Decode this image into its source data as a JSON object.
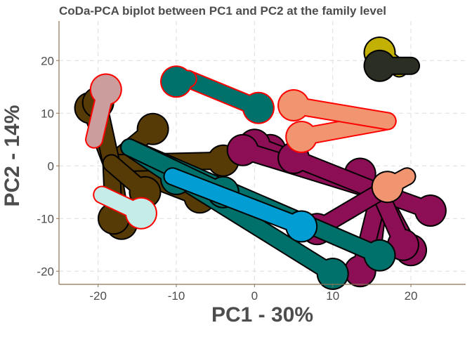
{
  "chart_data": {
    "type": "scatter",
    "title": "CoDa-PCA biplot between PC1 and PC2 at the family level",
    "xlabel": "PC1 - 30%",
    "ylabel": "PC2 - 14%",
    "xlim": [
      -25,
      27
    ],
    "ylim": [
      -22.5,
      27.5
    ],
    "x_ticks": [
      -20,
      -10,
      0,
      10,
      20
    ],
    "y_ticks": [
      -20,
      -10,
      0,
      10,
      20
    ],
    "x_tick_labels": [
      "-20",
      "-10",
      "0",
      "10",
      "20"
    ],
    "y_tick_labels": [
      "-20",
      "-10",
      "0",
      "10",
      "20"
    ],
    "grid": true,
    "series": [
      {
        "color": "#573b07",
        "outline": "#000000",
        "arrows": [
          {
            "from": [
              -18.3,
              0.5
            ],
            "to": [
              -21.0,
              11.0
            ]
          },
          {
            "from": [
              -18.3,
              0.5
            ],
            "to": [
              -13.0,
              7.0
            ]
          },
          {
            "from": [
              -18.3,
              0.5
            ],
            "to": [
              -17.0,
              -11.0
            ]
          },
          {
            "from": [
              -18.3,
              0.5
            ],
            "to": [
              -7.0,
              -6.0
            ]
          },
          {
            "from": [
              -18.3,
              0.5
            ],
            "to": [
              -4.0,
              1.0
            ]
          },
          {
            "from": [
              -18.3,
              0.5
            ],
            "to": [
              -20.0,
              12.0
            ]
          },
          {
            "from": [
              -18.3,
              0.5
            ],
            "to": [
              -18.0,
              -10.0
            ]
          },
          {
            "from": [
              -18.3,
              0.5
            ],
            "to": [
              -14.0,
              -5.0
            ]
          }
        ]
      },
      {
        "color": "#8c0f55",
        "outline": "#000000",
        "arrows": [
          {
            "from": [
              16.0,
              -5.0
            ],
            "to": [
              13.5,
              -1.5
            ]
          },
          {
            "from": [
              16.0,
              -5.0
            ],
            "to": [
              20.0,
              -16.0
            ]
          },
          {
            "from": [
              16.0,
              -5.0
            ],
            "to": [
              15.0,
              -17.0
            ]
          },
          {
            "from": [
              16.0,
              -5.0
            ],
            "to": [
              22.5,
              -8.5
            ]
          },
          {
            "from": [
              16.0,
              -5.0
            ],
            "to": [
              13.5,
              -20.0
            ]
          },
          {
            "from": [
              16.0,
              -5.0
            ],
            "to": [
              2.0,
              3.0
            ]
          },
          {
            "from": [
              16.0,
              -5.0
            ],
            "to": [
              0.0,
              4.0
            ]
          },
          {
            "from": [
              16.0,
              -5.0
            ],
            "to": [
              -1.5,
              3.0
            ]
          },
          {
            "from": [
              16.0,
              -5.0
            ],
            "to": [
              5.0,
              1.5
            ]
          },
          {
            "from": [
              16.0,
              -5.0
            ],
            "to": [
              19.0,
              -15.0
            ]
          },
          {
            "from": [
              16.0,
              -5.0
            ],
            "to": [
              8.0,
              -12.0
            ]
          }
        ]
      },
      {
        "color": "#00706a",
        "outline": "#000000",
        "arrows": [
          {
            "from": [
              -16.0,
              3.5
            ],
            "to": [
              16.0,
              -17.0
            ]
          },
          {
            "from": [
              -16.0,
              3.5
            ],
            "to": [
              10.0,
              -20.5
            ]
          },
          {
            "from": [
              -16.0,
              3.5
            ],
            "to": [
              -10.0,
              -2.5
            ]
          },
          {
            "from": [
              -16.0,
              3.5
            ],
            "to": [
              -4.0,
              -5.0
            ]
          }
        ]
      },
      {
        "color": "#029ed3",
        "outline": "#000000",
        "arrows": [
          {
            "from": [
              -10.5,
              -2.0
            ],
            "to": [
              6.0,
              -11.5
            ]
          }
        ]
      },
      {
        "color": "#c6ece8",
        "outline": "#ff0000",
        "arrows": [
          {
            "from": [
              -19.5,
              -5.5
            ],
            "to": [
              -14.5,
              -9.0
            ]
          }
        ]
      },
      {
        "color": "#cc9d9d",
        "outline": "#ff0000",
        "arrows": [
          {
            "from": [
              -20.5,
              5.0
            ],
            "to": [
              -19.0,
              14.5
            ]
          }
        ]
      },
      {
        "color": "#00706a",
        "outline": "#ff0000",
        "arrows": [
          {
            "from": [
              -8.5,
              16.5
            ],
            "to": [
              0.5,
              11.0
            ]
          },
          {
            "from": [
              -8.5,
              16.5
            ],
            "to": [
              -10.0,
              16.0
            ]
          }
        ]
      },
      {
        "color": "#f19570",
        "outline": "#ff0000",
        "arrows": [
          {
            "from": [
              17.0,
              8.5
            ],
            "to": [
              6.0,
              5.5
            ]
          },
          {
            "from": [
              17.0,
              8.5
            ],
            "to": [
              5.0,
              11.5
            ]
          }
        ]
      },
      {
        "color": "#f19570",
        "outline": "#000000",
        "arrows": [
          {
            "from": [
              19.5,
              -2.0
            ],
            "to": [
              17.0,
              -4.0
            ]
          }
        ]
      },
      {
        "color": "#c3b004",
        "outline": "#000000",
        "arrows": [
          {
            "from": [
              18.5,
              18.5
            ],
            "to": [
              16.0,
              21.5
            ]
          }
        ]
      },
      {
        "color": "#2b2e22",
        "outline": "#000000",
        "arrows": [
          {
            "from": [
              20.0,
              19.0
            ],
            "to": [
              16.0,
              19.0
            ]
          }
        ]
      }
    ]
  }
}
